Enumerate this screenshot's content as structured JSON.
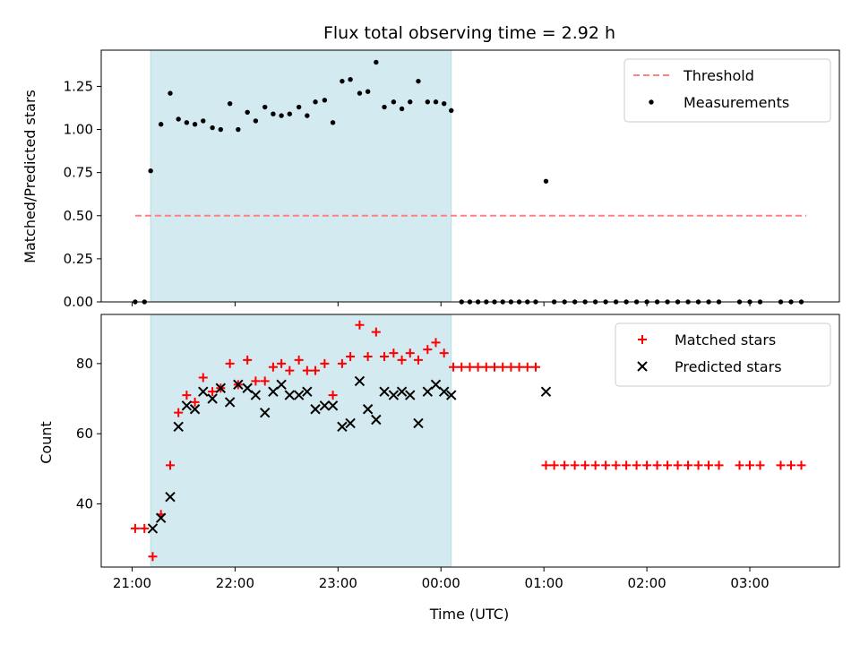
{
  "chart_data": {
    "type": "scatter",
    "title": "Flux total observing time = 2.92 h",
    "xlabel": "Time (UTC)",
    "x_ticks": [
      "21:00",
      "22:00",
      "23:00",
      "00:00",
      "01:00",
      "02:00",
      "03:00"
    ],
    "x_tick_hours": [
      21,
      22,
      23,
      24,
      25,
      26,
      27
    ],
    "xlim_hours": [
      20.7,
      27.87
    ],
    "highlight_span_hours": [
      21.18,
      24.1
    ],
    "highlight_color": "#d3eaf0",
    "panels": [
      {
        "ylabel": "Matched/Predicted stars",
        "ylim": [
          0,
          1.46
        ],
        "y_ticks": [
          0.0,
          0.25,
          0.5,
          0.75,
          1.0,
          1.25
        ],
        "y_tick_labels": [
          "0.00",
          "0.25",
          "0.50",
          "0.75",
          "1.00",
          "1.25"
        ],
        "legend_position": "top-right",
        "threshold": {
          "name": "Threshold",
          "value": 0.5,
          "x_range": [
            21.03,
            27.55
          ],
          "color": "#ff8080",
          "style": "dashed"
        },
        "series": [
          {
            "name": "Measurements",
            "marker": "dot",
            "color": "#000000",
            "points": [
              [
                21.03,
                0.0
              ],
              [
                21.12,
                0.0
              ],
              [
                21.18,
                0.76
              ],
              [
                21.28,
                1.03
              ],
              [
                21.37,
                1.21
              ],
              [
                21.45,
                1.06
              ],
              [
                21.53,
                1.04
              ],
              [
                21.61,
                1.03
              ],
              [
                21.69,
                1.05
              ],
              [
                21.78,
                1.01
              ],
              [
                21.86,
                1.0
              ],
              [
                21.95,
                1.15
              ],
              [
                22.03,
                1.0
              ],
              [
                22.12,
                1.1
              ],
              [
                22.2,
                1.05
              ],
              [
                22.29,
                1.13
              ],
              [
                22.37,
                1.09
              ],
              [
                22.45,
                1.08
              ],
              [
                22.53,
                1.09
              ],
              [
                22.62,
                1.13
              ],
              [
                22.7,
                1.08
              ],
              [
                22.78,
                1.16
              ],
              [
                22.87,
                1.17
              ],
              [
                22.95,
                1.04
              ],
              [
                23.04,
                1.28
              ],
              [
                23.12,
                1.29
              ],
              [
                23.21,
                1.21
              ],
              [
                23.29,
                1.22
              ],
              [
                23.37,
                1.39
              ],
              [
                23.45,
                1.13
              ],
              [
                23.54,
                1.16
              ],
              [
                23.62,
                1.12
              ],
              [
                23.7,
                1.16
              ],
              [
                23.78,
                1.28
              ],
              [
                23.87,
                1.16
              ],
              [
                23.95,
                1.16
              ],
              [
                24.03,
                1.15
              ],
              [
                24.1,
                1.11
              ],
              [
                24.2,
                0.0
              ],
              [
                24.28,
                0.0
              ],
              [
                24.36,
                0.0
              ],
              [
                24.44,
                0.0
              ],
              [
                24.52,
                0.0
              ],
              [
                24.6,
                0.0
              ],
              [
                24.68,
                0.0
              ],
              [
                24.76,
                0.0
              ],
              [
                24.84,
                0.0
              ],
              [
                24.92,
                0.0
              ],
              [
                25.02,
                0.7
              ],
              [
                25.1,
                0.0
              ],
              [
                25.2,
                0.0
              ],
              [
                25.3,
                0.0
              ],
              [
                25.4,
                0.0
              ],
              [
                25.5,
                0.0
              ],
              [
                25.6,
                0.0
              ],
              [
                25.7,
                0.0
              ],
              [
                25.8,
                0.0
              ],
              [
                25.9,
                0.0
              ],
              [
                26.0,
                0.0
              ],
              [
                26.1,
                0.0
              ],
              [
                26.2,
                0.0
              ],
              [
                26.3,
                0.0
              ],
              [
                26.4,
                0.0
              ],
              [
                26.5,
                0.0
              ],
              [
                26.6,
                0.0
              ],
              [
                26.7,
                0.0
              ],
              [
                26.9,
                0.0
              ],
              [
                27.0,
                0.0
              ],
              [
                27.1,
                0.0
              ],
              [
                27.3,
                0.0
              ],
              [
                27.4,
                0.0
              ],
              [
                27.5,
                0.0
              ]
            ]
          }
        ]
      },
      {
        "ylabel": "Count",
        "ylim": [
          22,
          94
        ],
        "y_ticks": [
          40,
          60,
          80
        ],
        "y_tick_labels": [
          "40",
          "60",
          "80"
        ],
        "legend_position": "top-right",
        "series": [
          {
            "name": "Matched stars",
            "marker": "plus",
            "color": "#ff0000",
            "points": [
              [
                21.03,
                33
              ],
              [
                21.12,
                33
              ],
              [
                21.2,
                25
              ],
              [
                21.28,
                37
              ],
              [
                21.37,
                51
              ],
              [
                21.45,
                66
              ],
              [
                21.53,
                71
              ],
              [
                21.61,
                69
              ],
              [
                21.69,
                76
              ],
              [
                21.78,
                72
              ],
              [
                21.86,
                73
              ],
              [
                21.95,
                80
              ],
              [
                22.03,
                74
              ],
              [
                22.12,
                81
              ],
              [
                22.2,
                75
              ],
              [
                22.29,
                75
              ],
              [
                22.37,
                79
              ],
              [
                22.45,
                80
              ],
              [
                22.53,
                78
              ],
              [
                22.62,
                81
              ],
              [
                22.7,
                78
              ],
              [
                22.78,
                78
              ],
              [
                22.87,
                80
              ],
              [
                22.95,
                71
              ],
              [
                23.04,
                80
              ],
              [
                23.12,
                82
              ],
              [
                23.21,
                91
              ],
              [
                23.29,
                82
              ],
              [
                23.37,
                89
              ],
              [
                23.45,
                82
              ],
              [
                23.54,
                83
              ],
              [
                23.62,
                81
              ],
              [
                23.7,
                83
              ],
              [
                23.78,
                81
              ],
              [
                23.87,
                84
              ],
              [
                23.95,
                86
              ],
              [
                24.03,
                83
              ],
              [
                24.12,
                79
              ],
              [
                24.2,
                79
              ],
              [
                24.28,
                79
              ],
              [
                24.36,
                79
              ],
              [
                24.44,
                79
              ],
              [
                24.52,
                79
              ],
              [
                24.6,
                79
              ],
              [
                24.68,
                79
              ],
              [
                24.76,
                79
              ],
              [
                24.84,
                79
              ],
              [
                24.92,
                79
              ],
              [
                25.02,
                51
              ],
              [
                25.1,
                51
              ],
              [
                25.2,
                51
              ],
              [
                25.3,
                51
              ],
              [
                25.4,
                51
              ],
              [
                25.5,
                51
              ],
              [
                25.6,
                51
              ],
              [
                25.7,
                51
              ],
              [
                25.8,
                51
              ],
              [
                25.9,
                51
              ],
              [
                26.0,
                51
              ],
              [
                26.1,
                51
              ],
              [
                26.2,
                51
              ],
              [
                26.3,
                51
              ],
              [
                26.4,
                51
              ],
              [
                26.5,
                51
              ],
              [
                26.6,
                51
              ],
              [
                26.7,
                51
              ],
              [
                26.9,
                51
              ],
              [
                27.0,
                51
              ],
              [
                27.1,
                51
              ],
              [
                27.3,
                51
              ],
              [
                27.4,
                51
              ],
              [
                27.5,
                51
              ]
            ]
          },
          {
            "name": "Predicted stars",
            "marker": "x",
            "color": "#000000",
            "points": [
              [
                21.2,
                33
              ],
              [
                21.28,
                36
              ],
              [
                21.37,
                42
              ],
              [
                21.45,
                62
              ],
              [
                21.53,
                68
              ],
              [
                21.61,
                67
              ],
              [
                21.69,
                72
              ],
              [
                21.78,
                70
              ],
              [
                21.86,
                73
              ],
              [
                21.95,
                69
              ],
              [
                22.03,
                74
              ],
              [
                22.12,
                73
              ],
              [
                22.2,
                71
              ],
              [
                22.29,
                66
              ],
              [
                22.37,
                72
              ],
              [
                22.45,
                74
              ],
              [
                22.53,
                71
              ],
              [
                22.62,
                71
              ],
              [
                22.7,
                72
              ],
              [
                22.78,
                67
              ],
              [
                22.87,
                68
              ],
              [
                22.95,
                68
              ],
              [
                23.04,
                62
              ],
              [
                23.12,
                63
              ],
              [
                23.21,
                75
              ],
              [
                23.29,
                67
              ],
              [
                23.37,
                64
              ],
              [
                23.45,
                72
              ],
              [
                23.54,
                71
              ],
              [
                23.62,
                72
              ],
              [
                23.7,
                71
              ],
              [
                23.78,
                63
              ],
              [
                23.87,
                72
              ],
              [
                23.95,
                74
              ],
              [
                24.03,
                72
              ],
              [
                24.1,
                71
              ],
              [
                25.02,
                72
              ]
            ]
          }
        ]
      }
    ]
  }
}
